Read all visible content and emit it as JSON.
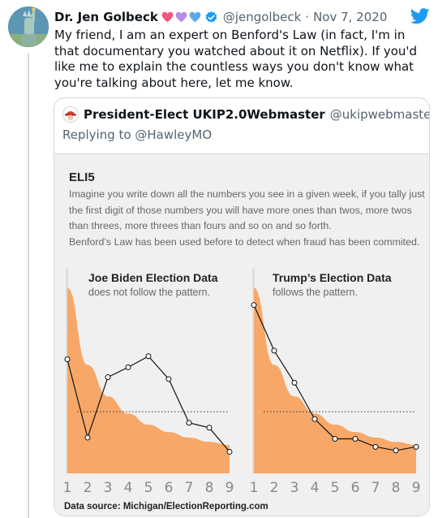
{
  "tweet": {
    "author_name": "Dr. Jen Golbeck",
    "author_handle": "@jengolbeck",
    "separator": "·",
    "date": "Nov 7, 2020",
    "text": "My friend, I am an expert on Benford's Law (in fact, I'm in that documentary you watched about it on Netflix). If you'd like me to explain the countless ways you don't know what you're talking about here, let me know.",
    "heart_colors": [
      "#f0587a",
      "#b58ee8",
      "#5aa9ec"
    ],
    "brand_color": "#1d9bf0"
  },
  "quote": {
    "author_name": "President-Elect UKIP2.0Webmaster",
    "author_handle": "@ukipwebmaster",
    "reply_prefix": "Replying to",
    "reply_mention": "@HawleyMO"
  },
  "infographic": {
    "title": "ELI5",
    "lines": [
      "Imagine you write down all the numbers you see in a given week, if you tally just",
      "the first digit of those numbers you will have more ones than twos, more twos",
      "than threes, more threes than fours and so on and so forth.",
      "Benford’s Law has been used before to detect when fraud has been commited."
    ],
    "source": "Data source: Michigan/ElectionReporting.com",
    "fill_color": "#f7a868",
    "chart_data": [
      {
        "type": "area",
        "title": "Joe Biden Election Data",
        "subtitle": "does not follow the pattern.",
        "x": [
          1,
          2,
          3,
          4,
          5,
          6,
          7,
          8,
          9
        ],
        "tick_labels": [
          "1",
          "2",
          "3",
          "4",
          "5",
          "6",
          "7",
          "8",
          "9"
        ],
        "series": [
          {
            "type": "area",
            "values": [
              30.1,
              17.6,
              12.5,
              9.7,
              7.9,
              6.7,
              5.8,
              5.1,
              4.6
            ]
          },
          {
            "type": "line",
            "values": [
              18.5,
              5.8,
              15.6,
              17.2,
              19.0,
              15.3,
              8.2,
              7.4,
              3.5
            ]
          }
        ],
        "reference_line": 10,
        "ylim": [
          0,
          32
        ]
      },
      {
        "type": "area",
        "title": "Trump’s Election Data",
        "subtitle": "follows the pattern.",
        "x": [
          1,
          2,
          3,
          4,
          5,
          6,
          7,
          8,
          9
        ],
        "tick_labels": [
          "1",
          "2",
          "3",
          "4",
          "5",
          "6",
          "7",
          "8",
          "9"
        ],
        "series": [
          {
            "type": "area",
            "values": [
              30.1,
              17.6,
              12.5,
              9.7,
              7.9,
              6.7,
              5.8,
              5.1,
              4.6
            ]
          },
          {
            "type": "line",
            "values": [
              27.3,
              19.9,
              14.7,
              8.8,
              5.6,
              5.6,
              4.3,
              3.7,
              4.3
            ]
          }
        ],
        "reference_line": 10,
        "ylim": [
          0,
          32
        ]
      }
    ]
  }
}
